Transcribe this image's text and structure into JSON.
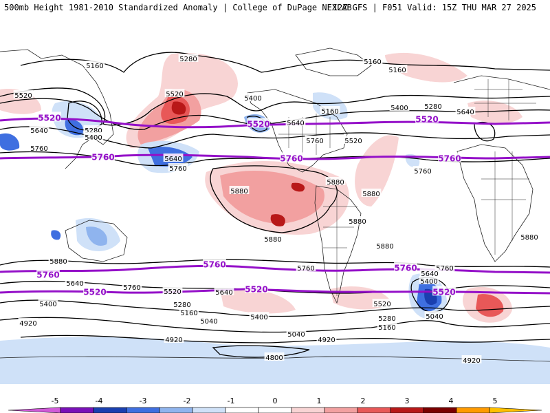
{
  "header": {
    "left": "500mb Height 1981-2010 Standardized Anomaly | College of DuPage NEXLAB",
    "right": "12Z GFS | F051 Valid: 15Z THU MAR 27 2025"
  },
  "colorbar": {
    "ticks": [
      "-5",
      "-4",
      "-3",
      "-2",
      "-1",
      "0",
      "1",
      "2",
      "3",
      "4",
      "5"
    ],
    "colors": [
      "#d05ad8",
      "#7a10b8",
      "#1a3fb0",
      "#3f6fe0",
      "#8fb4ee",
      "#cfe1f8",
      "#ffffff",
      "#ffffff",
      "#f8d4d4",
      "#f2a0a0",
      "#e85858",
      "#b81818",
      "#7a0000",
      "#ff9a00",
      "#ffc000"
    ]
  },
  "map": {
    "land_color": "#222222",
    "contour_color": "#000000",
    "highlight_color": "#9410c8",
    "highlight_labels": [
      {
        "text": "5520",
        "name": "label-5520-nw"
      },
      {
        "text": "5520",
        "name": "label-5520-npac"
      },
      {
        "text": "5520",
        "name": "label-5520-natl"
      },
      {
        "text": "5760",
        "name": "label-5760-npac"
      },
      {
        "text": "5760",
        "name": "label-5760-natl"
      },
      {
        "text": "5760",
        "name": "label-5760-ne"
      },
      {
        "text": "5760",
        "name": "label-5760-spac"
      },
      {
        "text": "5760",
        "name": "label-5760-sw"
      },
      {
        "text": "5760",
        "name": "label-5760-satl"
      },
      {
        "text": "5520",
        "name": "label-5520-sw"
      },
      {
        "text": "5520",
        "name": "label-5520-spac"
      },
      {
        "text": "5520",
        "name": "label-5520-satl"
      }
    ],
    "contour_labels": [
      {
        "text": "5160",
        "name": "label-5160-nw"
      },
      {
        "text": "5280",
        "name": "label-5280-n"
      },
      {
        "text": "5160",
        "name": "label-5160-ne1"
      },
      {
        "text": "5160",
        "name": "label-5160-ne2"
      },
      {
        "text": "5520",
        "name": "label-5520-w"
      },
      {
        "text": "5520",
        "name": "label-5520-bering"
      },
      {
        "text": "5400",
        "name": "label-5400-nam"
      },
      {
        "text": "5160",
        "name": "label-5160-hudson"
      },
      {
        "text": "5400",
        "name": "label-5400-atl"
      },
      {
        "text": "5280",
        "name": "label-5280-eur"
      },
      {
        "text": "5640",
        "name": "label-5640-eur"
      },
      {
        "text": "5640",
        "name": "label-5640-w"
      },
      {
        "text": "5280",
        "name": "label-5280-asia"
      },
      {
        "text": "5400",
        "name": "label-5400-asia"
      },
      {
        "text": "5640",
        "name": "label-5640-nam"
      },
      {
        "text": "5520",
        "name": "label-5520-nam"
      },
      {
        "text": "5760",
        "name": "label-5760-nam"
      },
      {
        "text": "5760",
        "name": "label-5760-w"
      },
      {
        "text": "5640",
        "name": "label-5640-pac"
      },
      {
        "text": "5760",
        "name": "label-5760-pac"
      },
      {
        "text": "5760",
        "name": "label-5760-atl"
      },
      {
        "text": "5880",
        "name": "label-5880-epac"
      },
      {
        "text": "5880",
        "name": "label-5880-car"
      },
      {
        "text": "5880",
        "name": "label-5880-atl"
      },
      {
        "text": "5880",
        "name": "label-5880-afr"
      },
      {
        "text": "5880",
        "name": "label-5880-sam"
      },
      {
        "text": "5880",
        "name": "label-5880-spac"
      },
      {
        "text": "5880",
        "name": "label-5880-sam2"
      },
      {
        "text": "5880",
        "name": "label-5880-aus"
      },
      {
        "text": "5760",
        "name": "label-5760-satl2"
      },
      {
        "text": "5760",
        "name": "label-5760-s"
      },
      {
        "text": "5640",
        "name": "label-5640-sw"
      },
      {
        "text": "5760",
        "name": "label-5760-aus"
      },
      {
        "text": "5640",
        "name": "label-5640-spac"
      },
      {
        "text": "5640",
        "name": "label-5640-satl"
      },
      {
        "text": "5400",
        "name": "label-5400-satl"
      },
      {
        "text": "5400",
        "name": "label-5400-sw"
      },
      {
        "text": "5520",
        "name": "label-5520-saus"
      },
      {
        "text": "5520",
        "name": "label-5520-sam"
      },
      {
        "text": "5280",
        "name": "label-5280-saus"
      },
      {
        "text": "5160",
        "name": "label-5160-saus"
      },
      {
        "text": "5040",
        "name": "label-5040-saus"
      },
      {
        "text": "5400",
        "name": "label-5400-spac"
      },
      {
        "text": "5280",
        "name": "label-5280-sam"
      },
      {
        "text": "5160",
        "name": "label-5160-sam"
      },
      {
        "text": "5040",
        "name": "label-5040-satl"
      },
      {
        "text": "5040",
        "name": "label-5040-spac"
      },
      {
        "text": "4920",
        "name": "label-4920-sw"
      },
      {
        "text": "4920",
        "name": "label-4920-ant"
      },
      {
        "text": "4920",
        "name": "label-4920-spac"
      },
      {
        "text": "4920",
        "name": "label-4920-se"
      },
      {
        "text": "4800",
        "name": "label-4800-ant"
      }
    ]
  }
}
